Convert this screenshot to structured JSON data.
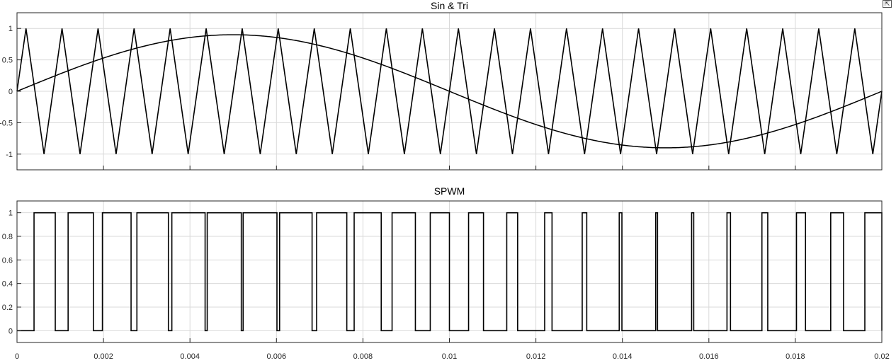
{
  "toolbar": {
    "restore_icon": "axes-restore-icon"
  },
  "colors": {
    "line": "#000000",
    "grid": "#d9d9d9",
    "axis": "#262626",
    "background": "#ffffff"
  },
  "chart_data": [
    {
      "type": "line",
      "title": "Sin & Tri",
      "xlabel": "",
      "ylabel": "",
      "xlim": [
        0,
        0.02
      ],
      "ylim": [
        -1.25,
        1.25
      ],
      "xticks": [
        0,
        0.002,
        0.004,
        0.006,
        0.008,
        0.01,
        0.012,
        0.014,
        0.016,
        0.018,
        0.02
      ],
      "yticks": [
        -1,
        -0.5,
        0,
        0.5,
        1
      ],
      "ytick_labels": [
        "-1",
        "-0.5",
        "0",
        "0.5",
        "1"
      ],
      "xtick_labels_shown": false,
      "grid": true,
      "series": [
        {
          "kind": "sine",
          "amplitude": 0.9,
          "frequency_hz": 50,
          "phase": 0
        },
        {
          "kind": "triangle",
          "amplitude": 1,
          "frequency_hz": 1200,
          "start_value": 0,
          "first_peak_t": 0.000208
        }
      ]
    },
    {
      "type": "line",
      "title": "SPWM",
      "xlabel": "",
      "ylabel": "",
      "xlim": [
        0,
        0.02
      ],
      "ylim": [
        -0.1,
        1.1
      ],
      "xticks": [
        0,
        0.002,
        0.004,
        0.006,
        0.008,
        0.01,
        0.012,
        0.014,
        0.016,
        0.018,
        0.02
      ],
      "xtick_labels": [
        "0",
        "0.002",
        "0.004",
        "0.006",
        "0.008",
        "0.01",
        "0.012",
        "0.014",
        "0.016",
        "0.018",
        "0.02"
      ],
      "yticks": [
        0,
        0.2,
        0.4,
        0.6,
        0.8,
        1
      ],
      "ytick_labels": [
        "0",
        "0.2",
        "0.4",
        "0.6",
        "0.8",
        "1"
      ],
      "grid": true,
      "series": [
        {
          "kind": "pulse",
          "description_source": "sine > triangle comparison",
          "low": 0,
          "high": 1
        }
      ]
    }
  ]
}
